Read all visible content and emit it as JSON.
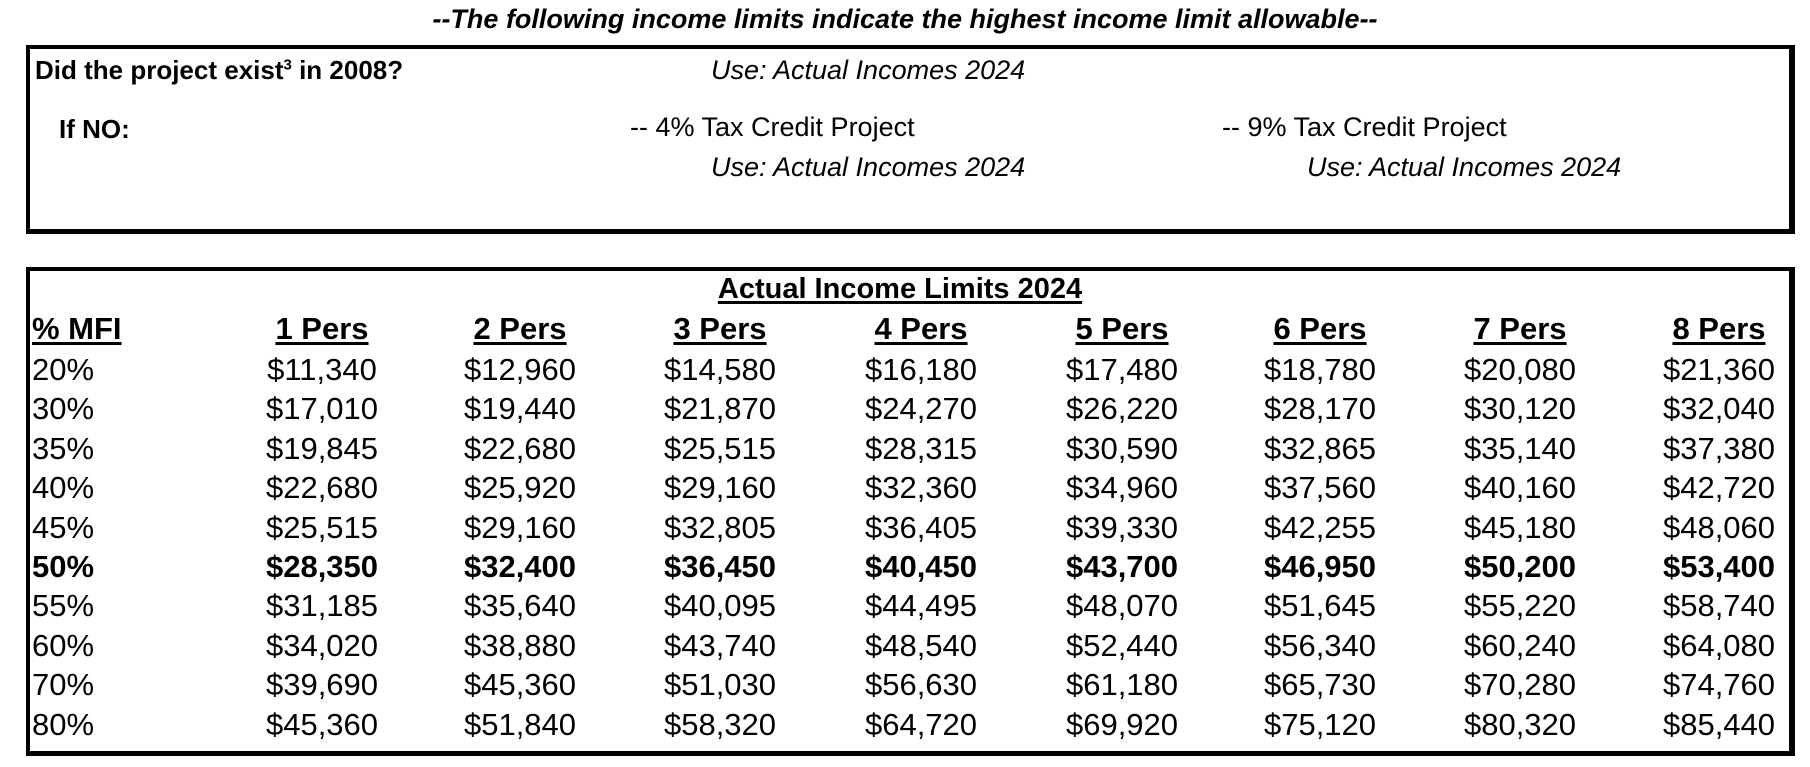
{
  "header": {
    "title": "--The following income limits indicate the highest income limit allowable--"
  },
  "criteria": {
    "question_prefix": "Did the project exist",
    "question_sup": "3",
    "question_suffix": " in 2008?",
    "question_answer": "Use: Actual Incomes 2024",
    "if_no_label": "If NO:",
    "option_4pct": {
      "label": "-- 4% Tax Credit Project",
      "use": "Use: Actual Incomes 2024"
    },
    "option_9pct": {
      "label": "-- 9% Tax Credit Project",
      "use": "Use: Actual Incomes 2024"
    }
  },
  "table": {
    "title": "Actual Income Limits 2024",
    "columns": [
      "% MFI",
      "1 Pers",
      "2 Pers",
      "3 Pers",
      "4 Pers",
      "5 Pers",
      "6 Pers",
      "7 Pers",
      "8 Pers"
    ],
    "highlight_row": "50%",
    "rows": [
      [
        "20%",
        "$11,340",
        "$12,960",
        "$14,580",
        "$16,180",
        "$17,480",
        "$18,780",
        "$20,080",
        "$21,360"
      ],
      [
        "30%",
        "$17,010",
        "$19,440",
        "$21,870",
        "$24,270",
        "$26,220",
        "$28,170",
        "$30,120",
        "$32,040"
      ],
      [
        "35%",
        "$19,845",
        "$22,680",
        "$25,515",
        "$28,315",
        "$30,590",
        "$32,865",
        "$35,140",
        "$37,380"
      ],
      [
        "40%",
        "$22,680",
        "$25,920",
        "$29,160",
        "$32,360",
        "$34,960",
        "$37,560",
        "$40,160",
        "$42,720"
      ],
      [
        "45%",
        "$25,515",
        "$29,160",
        "$32,805",
        "$36,405",
        "$39,330",
        "$42,255",
        "$45,180",
        "$48,060"
      ],
      [
        "50%",
        "$28,350",
        "$32,400",
        "$36,450",
        "$40,450",
        "$43,700",
        "$46,950",
        "$50,200",
        "$53,400"
      ],
      [
        "55%",
        "$31,185",
        "$35,640",
        "$40,095",
        "$44,495",
        "$48,070",
        "$51,645",
        "$55,220",
        "$58,740"
      ],
      [
        "60%",
        "$34,020",
        "$38,880",
        "$43,740",
        "$48,540",
        "$52,440",
        "$56,340",
        "$60,240",
        "$64,080"
      ],
      [
        "70%",
        "$39,690",
        "$45,360",
        "$51,030",
        "$56,630",
        "$61,180",
        "$65,730",
        "$70,280",
        "$74,760"
      ],
      [
        "80%",
        "$45,360",
        "$51,840",
        "$58,320",
        "$64,720",
        "$69,920",
        "$75,120",
        "$80,320",
        "$85,440"
      ]
    ]
  }
}
